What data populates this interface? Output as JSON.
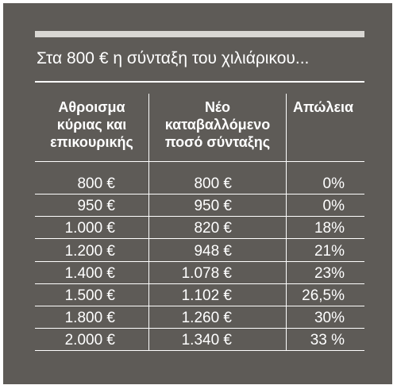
{
  "headline": "Στα 800 € η σύνταξη του χιλιάρικου...",
  "columns": [
    "Αθροισμα\nκύριας και\nεπικουρικής",
    "Νέο\nκαταβαλλόμενο\nποσό σύνταξης",
    "Απώλεια"
  ],
  "rows": [
    {
      "total": "800 €",
      "new_amount": "800 €",
      "loss": "0%"
    },
    {
      "total": "950 €",
      "new_amount": "950 €",
      "loss": "0%"
    },
    {
      "total": "1.000 €",
      "new_amount": "820 €",
      "loss": "18%"
    },
    {
      "total": "1.200 €",
      "new_amount": "948 €",
      "loss": "21%"
    },
    {
      "total": "1.400 €",
      "new_amount": "1.078 €",
      "loss": "23%"
    },
    {
      "total": "1.500 €",
      "new_amount": "1.102 €",
      "loss": "26,5%"
    },
    {
      "total": "1.800 €",
      "new_amount": "1.260 €",
      "loss": "30%"
    },
    {
      "total": "2.000 €",
      "new_amount": "1.340 €",
      "loss": "33 %"
    }
  ],
  "colors": {
    "background": "#5e5b57",
    "rule": "#d9d7d3",
    "text": "#ffffff"
  }
}
